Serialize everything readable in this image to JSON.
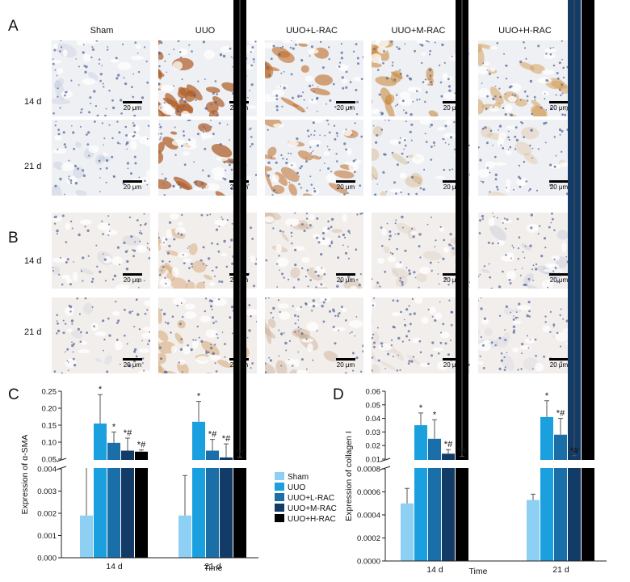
{
  "figure": {
    "panel_labels": {
      "A": "A",
      "B": "B",
      "C": "C",
      "D": "D"
    },
    "column_headers": [
      "Sham",
      "UUO",
      "UUO+L-RAC",
      "UUO+M-RAC",
      "UUO+H-RAC"
    ],
    "row_labels": [
      "14 d",
      "21 d"
    ],
    "scale_bar_label": "20 μm",
    "stain_colors": {
      "A": [
        "#9aa9c9",
        "#b0602a",
        "#c1702f",
        "#c98a3f",
        "#d49a55"
      ],
      "B": [
        "#a9b2cf",
        "#d6a672",
        "#c9a88a",
        "#d8c4b6",
        "#b8bfd6"
      ]
    },
    "stain_intensity": {
      "A": [
        [
          0.05,
          0.95,
          0.8,
          0.75,
          0.6
        ],
        [
          0.12,
          0.98,
          0.7,
          0.18,
          0.12
        ]
      ],
      "B": [
        [
          0.08,
          0.55,
          0.35,
          0.3,
          0.3
        ],
        [
          0.06,
          0.65,
          0.45,
          0.22,
          0.05
        ]
      ]
    }
  },
  "chart_data": [
    {
      "type": "bar",
      "panel": "C",
      "categories": [
        "14 d",
        "21 d"
      ],
      "xlabel": "Time",
      "ylabel": "Expression of α-SMA",
      "axis_break": true,
      "lower_ylim": [
        0,
        0.004
      ],
      "lower_ticks": [
        "0.000",
        "0.001",
        "0.002",
        "0.003",
        "0.004"
      ],
      "upper_ylim": [
        0.05,
        0.25
      ],
      "upper_ticks": [
        "0.05",
        "0.10",
        "0.15",
        "0.20",
        "0.25"
      ],
      "series": [
        {
          "name": "Sham",
          "color": "#8dd0f3",
          "values": [
            0.0019,
            0.0019
          ],
          "errors": [
            0.0022,
            0.0018
          ],
          "marks": [
            "",
            ""
          ]
        },
        {
          "name": "UUO",
          "color": "#1aa0df",
          "values": [
            0.155,
            0.16
          ],
          "errors": [
            0.085,
            0.06
          ],
          "marks": [
            "*",
            "*"
          ]
        },
        {
          "name": "UUO+L-RAC",
          "color": "#1b6fa8",
          "values": [
            0.098,
            0.075
          ],
          "errors": [
            0.032,
            0.033
          ],
          "marks": [
            "*",
            "*#"
          ]
        },
        {
          "name": "UUO+M-RAC",
          "color": "#123b68",
          "values": [
            0.075,
            0.055
          ],
          "errors": [
            0.037,
            0.04
          ],
          "marks": [
            "*#",
            "*#"
          ]
        },
        {
          "name": "UUO+H-RAC",
          "color": "#000000",
          "values": [
            0.072,
            0.04
          ],
          "errors": [
            0.005,
            0.015
          ],
          "marks": [
            "*#",
            "*#"
          ]
        }
      ],
      "legend_position": "right"
    },
    {
      "type": "bar",
      "panel": "D",
      "categories": [
        "14 d",
        "21 d"
      ],
      "xlabel": "Time",
      "ylabel": "Expression of collagen I",
      "axis_break": true,
      "lower_ylim": [
        0,
        0.0008
      ],
      "lower_ticks": [
        "0.0000",
        "0.0002",
        "0.0004",
        "0.0006",
        "0.0008"
      ],
      "upper_ylim": [
        0.01,
        0.06
      ],
      "upper_ticks": [
        "0.01",
        "0.02",
        "0.03",
        "0.04",
        "0.05",
        "0.06"
      ],
      "series": [
        {
          "name": "Sham",
          "color": "#8dd0f3",
          "values": [
            0.0005,
            0.00053
          ],
          "errors": [
            0.00013,
            5e-05
          ],
          "marks": [
            "",
            ""
          ]
        },
        {
          "name": "UUO",
          "color": "#1aa0df",
          "values": [
            0.035,
            0.041
          ],
          "errors": [
            0.009,
            0.012
          ],
          "marks": [
            "*",
            "*"
          ]
        },
        {
          "name": "UUO+L-RAC",
          "color": "#1b6fa8",
          "values": [
            0.025,
            0.028
          ],
          "errors": [
            0.014,
            0.012
          ],
          "marks": [
            "*",
            "*#"
          ]
        },
        {
          "name": "UUO+M-RAC",
          "color": "#123b68",
          "values": [
            0.014,
            0.0095
          ],
          "errors": [
            0.003,
            0.003
          ],
          "marks": [
            "*#",
            "*#"
          ]
        },
        {
          "name": "UUO+H-RAC",
          "color": "#000000",
          "values": [
            0.009,
            0.0065
          ],
          "errors": [
            0.003,
            0.001
          ],
          "marks": [
            "*#",
            "*#"
          ]
        }
      ]
    }
  ]
}
